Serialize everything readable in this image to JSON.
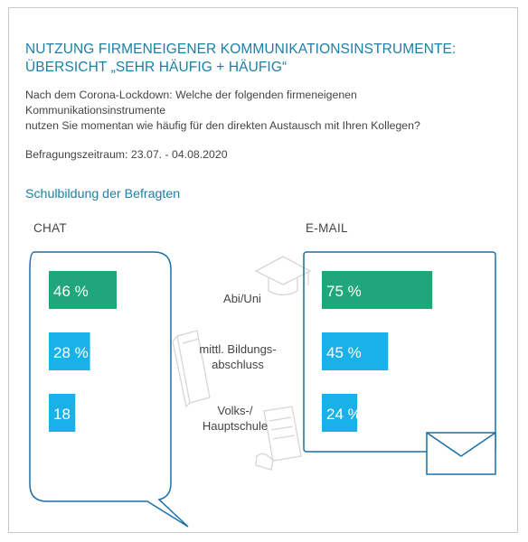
{
  "title_lines": [
    "NUTZUNG FIRMENEIGENER KOMMUNIKATIONSINSTRUMENTE:",
    "ÜBERSICHT „SEHR HÄUFIG + HÄUFIG“"
  ],
  "question_lines": [
    "Nach dem Corona-Lockdown: Welche der folgenden firmeneigenen Kommunikationsinstrumente",
    "nutzen Sie momentan wie häufig für den direkten Austausch mit Ihren Kollegen?"
  ],
  "period": "Befragungszeitraum: 23.07. - 04.08.2020",
  "subheading": "Schulbildung der Befragten",
  "colors": {
    "title": "#1b7fa5",
    "top_bar": "#1fa67a",
    "other_bars": "#1ab0e8",
    "outline": "#1b6fa5",
    "icon": "#d6d6d6"
  },
  "icons": [
    "speech-bubble",
    "mortarboard-icon",
    "book-icon",
    "certificate-icon",
    "envelope-icon"
  ],
  "chart_data": {
    "type": "bar",
    "unit": "%",
    "categories": [
      "Abi/Uni",
      "mittl. Bildungsabschluss",
      "Volks-/Hauptschule"
    ],
    "category_label_lines": [
      [
        "Abi/Uni"
      ],
      [
        "mittl. Bildungs-",
        "abschluss"
      ],
      [
        "Volks-/",
        "Hauptschule"
      ]
    ],
    "series": [
      {
        "name": "CHAT",
        "values": [
          46,
          28,
          18
        ],
        "labels": [
          "46 %",
          "28 %",
          "18 %"
        ]
      },
      {
        "name": "E-MAIL",
        "values": [
          75,
          45,
          24
        ],
        "labels": [
          "75 %",
          "45 %",
          "24 %"
        ]
      }
    ]
  }
}
